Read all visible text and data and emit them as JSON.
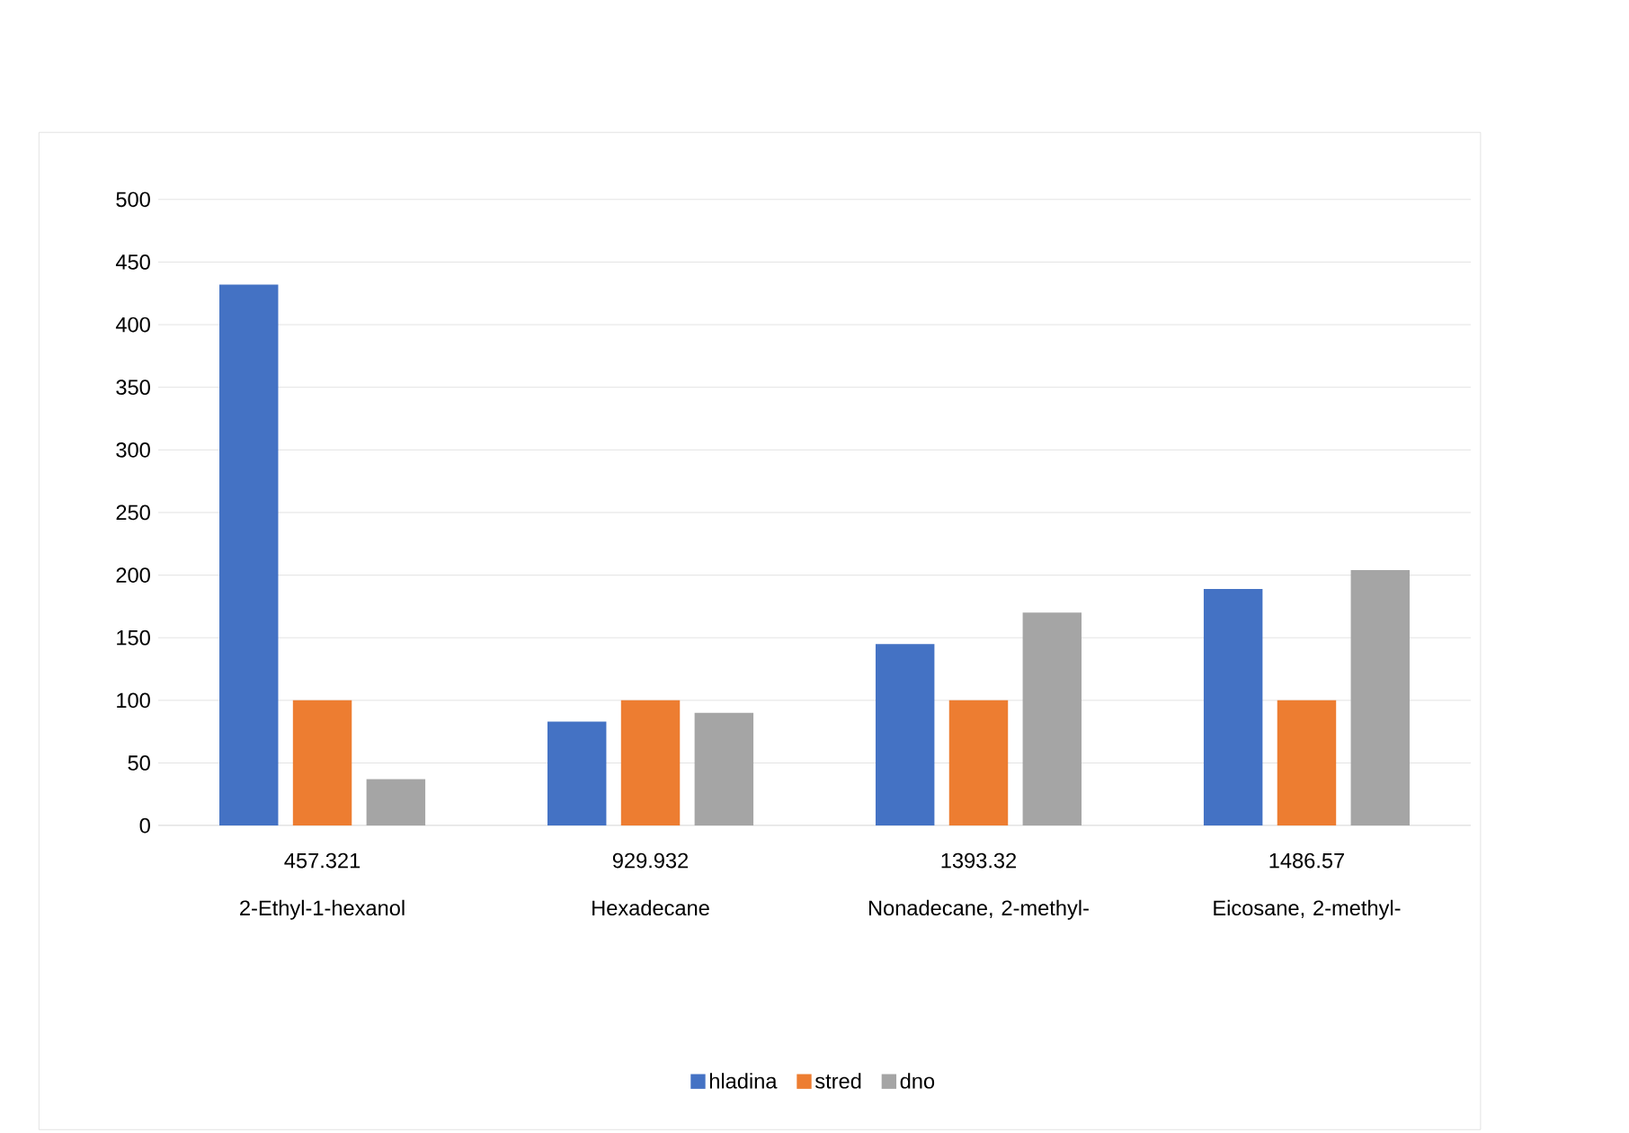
{
  "chart_data": {
    "type": "bar",
    "categories": [
      "457.321\n2-Ethyl-1-hexanol",
      "929.932\nHexadecane",
      "1393.32\nNonadecane, 2-methyl-",
      "1486.57\nEicosane, 2-methyl-"
    ],
    "series": [
      {
        "name": "hladina",
        "color": "#4472c4",
        "values": [
          432,
          83,
          145,
          189
        ]
      },
      {
        "name": "stred",
        "color": "#ed7d31",
        "values": [
          100,
          100,
          100,
          100
        ]
      },
      {
        "name": "dno",
        "color": "#a5a5a5",
        "values": [
          37,
          90,
          170,
          204
        ]
      }
    ],
    "ylim": [
      0,
      500
    ],
    "yticks": [
      0,
      50,
      100,
      150,
      200,
      250,
      300,
      350,
      400,
      450,
      500
    ],
    "grid": "y",
    "legend": "bottom"
  }
}
